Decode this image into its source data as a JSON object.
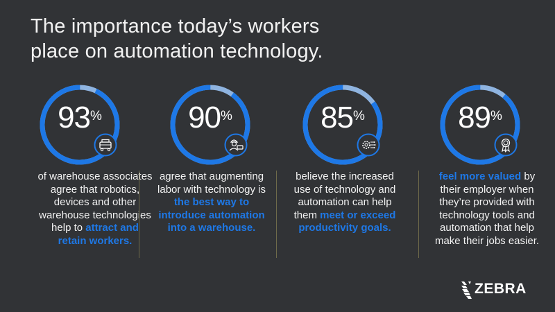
{
  "title": {
    "line1": "The importance today’s workers",
    "line2": "place on automation technology."
  },
  "colors": {
    "background": "#313336",
    "accent": "#1e78e6",
    "ring_light": "#8fb4e0"
  },
  "stats": [
    {
      "value": "93",
      "unit": "%",
      "fraction": 0.93,
      "icon": "robot-icon",
      "text": [
        {
          "t": "of warehouse associates agree that robotics, devices and other warehouse technologies help to ",
          "hl": false
        },
        {
          "t": "attract and retain workers.",
          "hl": true
        }
      ]
    },
    {
      "value": "90",
      "unit": "%",
      "fraction": 0.9,
      "icon": "worker-scanner-icon",
      "text": [
        {
          "t": "agree that augmenting labor with technology is ",
          "hl": false
        },
        {
          "t": "the best way to introduce automation into a warehouse.",
          "hl": true
        }
      ]
    },
    {
      "value": "85",
      "unit": "%",
      "fraction": 0.85,
      "icon": "gear-circuit-icon",
      "text": [
        {
          "t": "believe the increased use of technology and automation can help them ",
          "hl": false
        },
        {
          "t": "meet or exceed productivity goals.",
          "hl": true
        }
      ]
    },
    {
      "value": "89",
      "unit": "%",
      "fraction": 0.89,
      "icon": "award-ribbon-icon",
      "text": [
        {
          "t": "feel more valued",
          "hl": true
        },
        {
          "t": " by their employer when they’re provided with technology tools and automation that help make their jobs easier.",
          "hl": false
        }
      ]
    }
  ],
  "logo": {
    "text": "ZEBRA",
    "icon": "zebra-head-icon"
  }
}
